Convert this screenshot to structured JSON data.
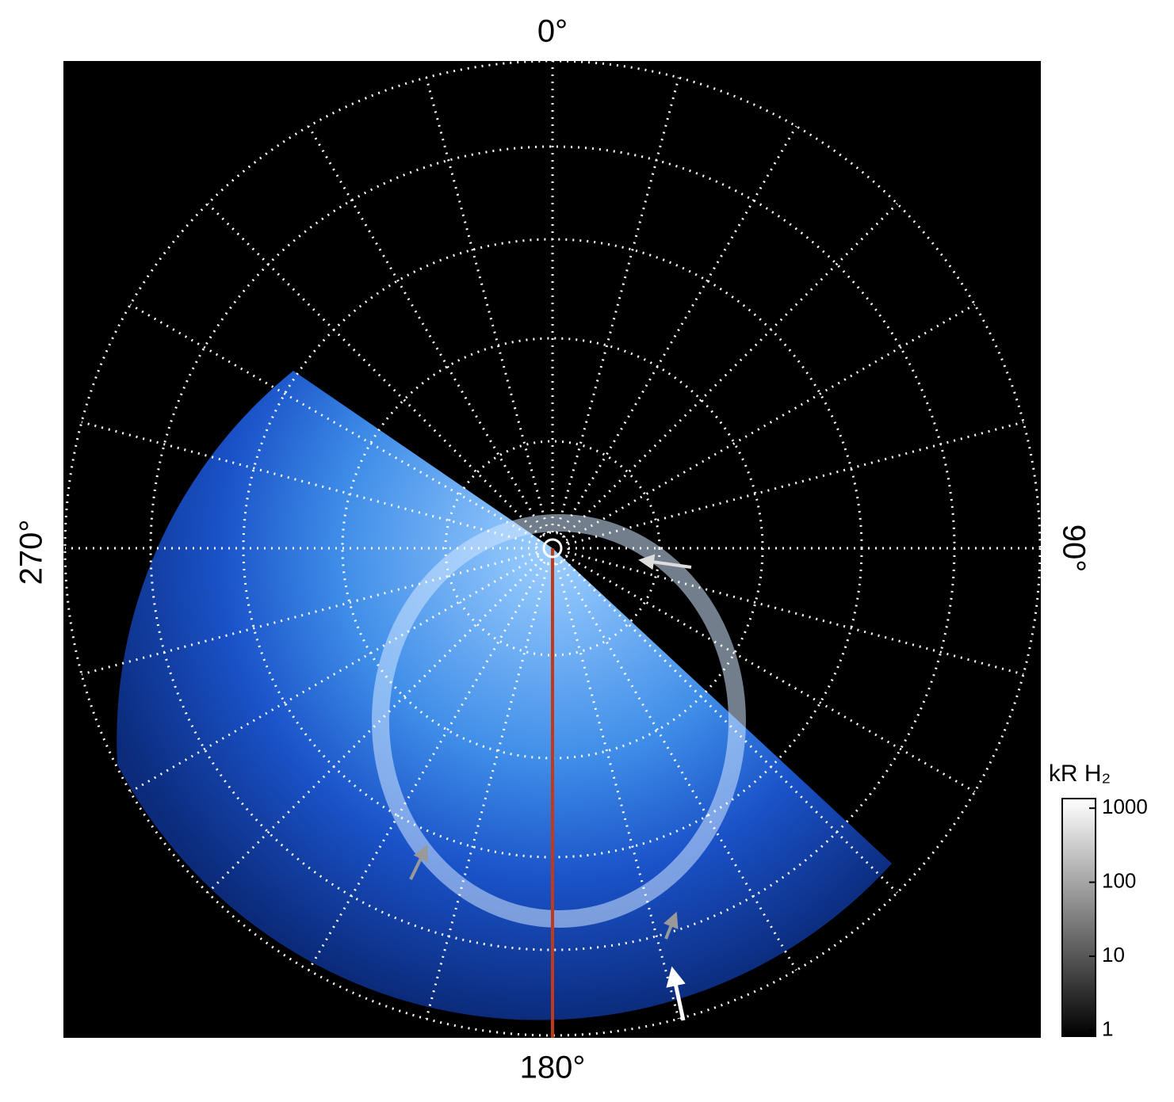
{
  "figure": {
    "direction_labels": {
      "top": "0°",
      "right": "90°",
      "bottom": "180°",
      "left": "270°"
    },
    "colorbar": {
      "label": "kR H₂",
      "scale": "log",
      "lim": [
        0.83,
        1350
      ],
      "ticks": [
        1,
        10,
        100,
        1000
      ]
    }
  }
}
